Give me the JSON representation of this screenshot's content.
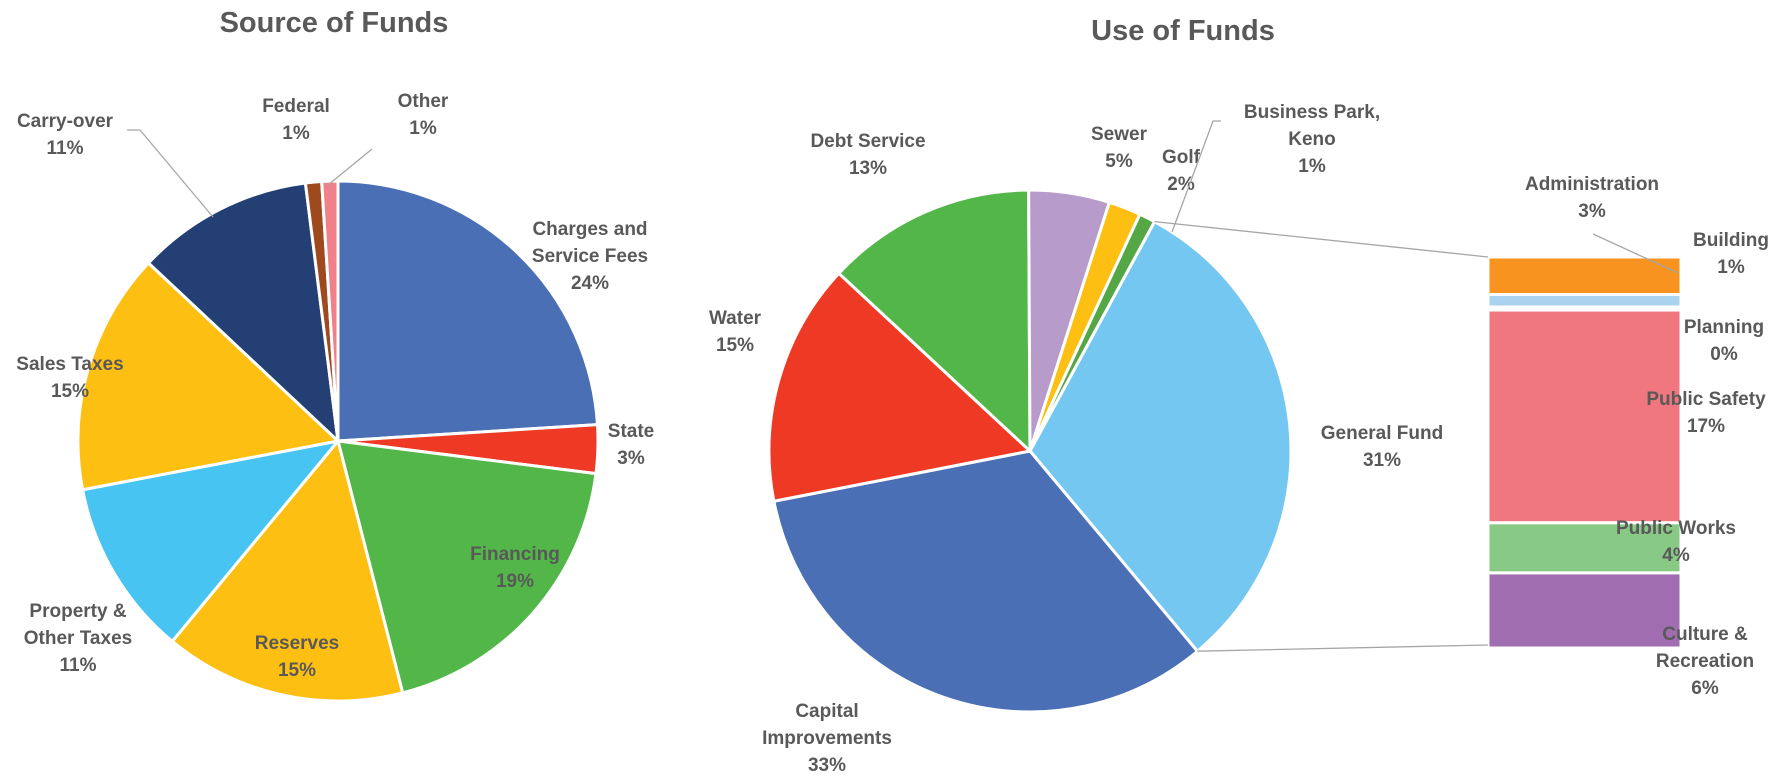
{
  "chart_data": [
    {
      "type": "pie",
      "title": "Source of Funds",
      "slices": [
        {
          "label": [
            "Charges and",
            "Service Fees"
          ],
          "value": 24,
          "value_label": "24%",
          "color": "#4a6fb5"
        },
        {
          "label": [
            "State"
          ],
          "value": 3,
          "value_label": "3%",
          "color": "#ee3a25"
        },
        {
          "label": [
            "Financing"
          ],
          "value": 19,
          "value_label": "19%",
          "color": "#52b748"
        },
        {
          "label": [
            "Reserves"
          ],
          "value": 15,
          "value_label": "15%",
          "color": "#fcbf12"
        },
        {
          "label": [
            "Property &",
            "Other Taxes"
          ],
          "value": 11,
          "value_label": "11%",
          "color": "#47c4f2"
        },
        {
          "label": [
            "Sales Taxes"
          ],
          "value": 15,
          "value_label": "15%",
          "color": "#fcbf12"
        },
        {
          "label": [
            "Carry-over"
          ],
          "value": 11,
          "value_label": "11%",
          "color": "#233f73"
        },
        {
          "label": [
            "Federal"
          ],
          "value": 1,
          "value_label": "1%",
          "color": "#9e4a1e"
        },
        {
          "label": [
            "Other"
          ],
          "value": 1,
          "value_label": "1%",
          "color": "#f0808a"
        }
      ]
    },
    {
      "type": "pie",
      "title": "Use of Funds",
      "slices": [
        {
          "label": [
            "General Fund"
          ],
          "value": 31,
          "value_label": "31%",
          "color": "#74c7f1"
        },
        {
          "label": [
            "Capital",
            "Improvements"
          ],
          "value": 33,
          "value_label": "33%",
          "color": "#4a6fb5"
        },
        {
          "label": [
            "Water"
          ],
          "value": 15,
          "value_label": "15%",
          "color": "#ee3a25"
        },
        {
          "label": [
            "Debt Service"
          ],
          "value": 13,
          "value_label": "13%",
          "color": "#52b748"
        },
        {
          "label": [
            "Sewer"
          ],
          "value": 5,
          "value_label": "5%",
          "color": "#b79bcb"
        },
        {
          "label": [
            "Golf"
          ],
          "value": 2,
          "value_label": "2%",
          "color": "#fcbf12"
        },
        {
          "label": [
            "Business Park,",
            "Keno"
          ],
          "value": 1,
          "value_label": "1%",
          "color": "#55a644"
        }
      ],
      "breakdown_of": "General Fund",
      "breakdown": [
        {
          "label": [
            "Administration"
          ],
          "value": 3,
          "value_label": "3%",
          "color": "#f7931e"
        },
        {
          "label": [
            "Building"
          ],
          "value": 1,
          "value_label": "1%",
          "color": "#a9d3ef"
        },
        {
          "label": [
            "Planning"
          ],
          "value": 0,
          "value_label": "0%",
          "color": "#8c4b33"
        },
        {
          "label": [
            "Public Safety"
          ],
          "value": 17,
          "value_label": "17%",
          "color": "#f0767f"
        },
        {
          "label": [
            "Public Works"
          ],
          "value": 4,
          "value_label": "4%",
          "color": "#88c986"
        },
        {
          "label": [
            "Culture &",
            "Recreation"
          ],
          "value": 6,
          "value_label": "6%",
          "color": "#9f6db0"
        }
      ]
    }
  ]
}
